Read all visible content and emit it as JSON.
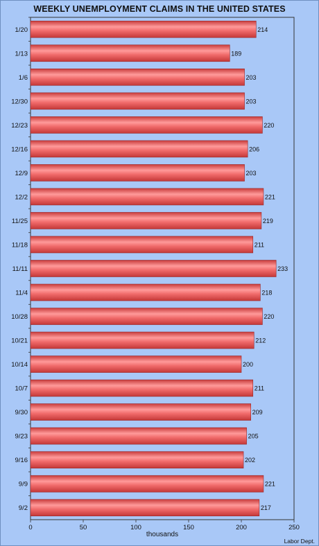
{
  "chart_data": {
    "type": "bar",
    "orientation": "horizontal",
    "title": "WEEKLY UNEMPLOYMENT CLAIMS IN THE UNITED STATES",
    "xlabel": "thousands",
    "ylabel": "",
    "xlim": [
      0,
      250
    ],
    "xticks": [
      0,
      50,
      100,
      150,
      200,
      250
    ],
    "categories": [
      "1/20",
      "1/13",
      "1/6",
      "12/30",
      "12/23",
      "12/16",
      "12/9",
      "12/2",
      "11/25",
      "11/18",
      "11/11",
      "11/4",
      "10/28",
      "10/21",
      "10/14",
      "10/7",
      "9/30",
      "9/23",
      "9/16",
      "9/9",
      "9/2"
    ],
    "values": [
      214,
      189,
      203,
      203,
      220,
      206,
      203,
      221,
      219,
      211,
      233,
      218,
      220,
      212,
      200,
      211,
      209,
      205,
      202,
      221,
      217
    ],
    "source": "Labor Dept.",
    "colors": {
      "background": "#a9c8f7",
      "bar": "#ee5b5b",
      "bar_highlight": "#ff9a9a",
      "bar_shadow": "#c83c3c"
    },
    "grid": false,
    "legend": "none"
  }
}
